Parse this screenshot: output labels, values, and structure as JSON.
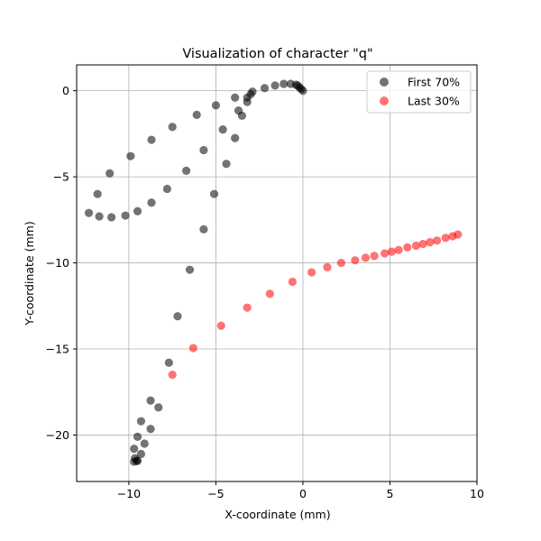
{
  "chart_data": {
    "type": "scatter",
    "title": "Visualization of character \"q\"",
    "xlabel": "X-coordinate (mm)",
    "ylabel": "Y-coordinate (mm)",
    "xlim": [
      -13,
      10
    ],
    "ylim": [
      -22.7,
      1.5
    ],
    "xticks": [
      -10,
      -5,
      0,
      5,
      10
    ],
    "yticks": [
      0,
      -5,
      -10,
      -15,
      -20
    ],
    "xtick_labels": [
      "−10",
      "−5",
      "0",
      "5",
      "10"
    ],
    "ytick_labels": [
      "0",
      "−5",
      "−10",
      "−15",
      "−20"
    ],
    "grid": true,
    "legend_position": "top-right",
    "series": [
      {
        "name": "First 70%",
        "color": "#000000",
        "opacity": 0.55,
        "points": [
          [
            0,
            0
          ],
          [
            -0.1,
            0.1
          ],
          [
            -0.2,
            0.2
          ],
          [
            -0.3,
            0.3
          ],
          [
            -0.4,
            0.35
          ],
          [
            -0.7,
            0.4
          ],
          [
            -1.1,
            0.4
          ],
          [
            -1.6,
            0.3
          ],
          [
            -2.2,
            0.15
          ],
          [
            -2.9,
            -0.05
          ],
          [
            -3.0,
            -0.2
          ],
          [
            -3.2,
            -0.4
          ],
          [
            -3.2,
            -0.65
          ],
          [
            -3.9,
            -0.4
          ],
          [
            -3.7,
            -1.15
          ],
          [
            -3.5,
            -1.45
          ],
          [
            -5.0,
            -0.85
          ],
          [
            -6.1,
            -1.4
          ],
          [
            -7.5,
            -2.1
          ],
          [
            -8.7,
            -2.85
          ],
          [
            -9.9,
            -3.8
          ],
          [
            -11.1,
            -4.8
          ],
          [
            -11.8,
            -6.0
          ],
          [
            -12.3,
            -7.1
          ],
          [
            -11.7,
            -7.3
          ],
          [
            -11.0,
            -7.35
          ],
          [
            -10.2,
            -7.25
          ],
          [
            -9.5,
            -7.0
          ],
          [
            -8.7,
            -6.5
          ],
          [
            -7.8,
            -5.7
          ],
          [
            -6.7,
            -4.65
          ],
          [
            -5.7,
            -3.45
          ],
          [
            -4.6,
            -2.25
          ],
          [
            -3.9,
            -2.75
          ],
          [
            -4.4,
            -4.25
          ],
          [
            -5.1,
            -6.0
          ],
          [
            -5.7,
            -8.05
          ],
          [
            -6.5,
            -10.4
          ],
          [
            -7.2,
            -13.1
          ],
          [
            -7.7,
            -15.8
          ],
          [
            -8.3,
            -18.4
          ],
          [
            -8.75,
            -19.65
          ],
          [
            -9.1,
            -20.5
          ],
          [
            -9.3,
            -21.1
          ],
          [
            -9.5,
            -21.5
          ],
          [
            -9.65,
            -21.35
          ],
          [
            -9.7,
            -21.55
          ],
          [
            -9.55,
            -21.5
          ],
          [
            -9.7,
            -20.8
          ],
          [
            -9.5,
            -20.1
          ],
          [
            -9.3,
            -19.2
          ],
          [
            -8.75,
            -18.0
          ]
        ]
      },
      {
        "name": "Last 30%",
        "color": "#ff0000",
        "opacity": 0.55,
        "points": [
          [
            -7.5,
            -16.5
          ],
          [
            -6.3,
            -14.95
          ],
          [
            -4.7,
            -13.65
          ],
          [
            -3.2,
            -12.6
          ],
          [
            -1.9,
            -11.8
          ],
          [
            -0.6,
            -11.1
          ],
          [
            0.5,
            -10.55
          ],
          [
            1.4,
            -10.25
          ],
          [
            2.2,
            -10.0
          ],
          [
            3.0,
            -9.85
          ],
          [
            3.6,
            -9.7
          ],
          [
            4.1,
            -9.6
          ],
          [
            4.7,
            -9.45
          ],
          [
            5.1,
            -9.35
          ],
          [
            5.5,
            -9.25
          ],
          [
            6.0,
            -9.1
          ],
          [
            6.5,
            -9.0
          ],
          [
            6.9,
            -8.9
          ],
          [
            7.3,
            -8.8
          ],
          [
            7.7,
            -8.7
          ],
          [
            8.2,
            -8.55
          ],
          [
            8.6,
            -8.45
          ],
          [
            8.9,
            -8.35
          ]
        ]
      }
    ]
  }
}
